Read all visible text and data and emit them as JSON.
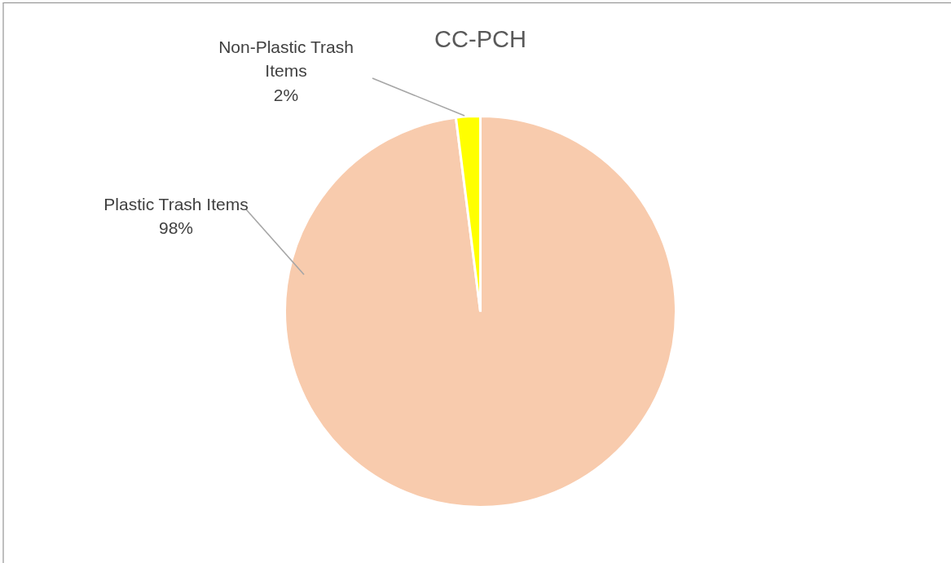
{
  "chart_data": {
    "type": "pie",
    "title": "CC-PCH",
    "categories": [
      "Plastic Trash Items",
      "Non-Plastic Trash Items"
    ],
    "values": [
      98,
      2
    ],
    "colors": [
      "#f8cbad",
      "#ffff00"
    ],
    "value_labels": [
      "98%",
      "2%"
    ]
  }
}
